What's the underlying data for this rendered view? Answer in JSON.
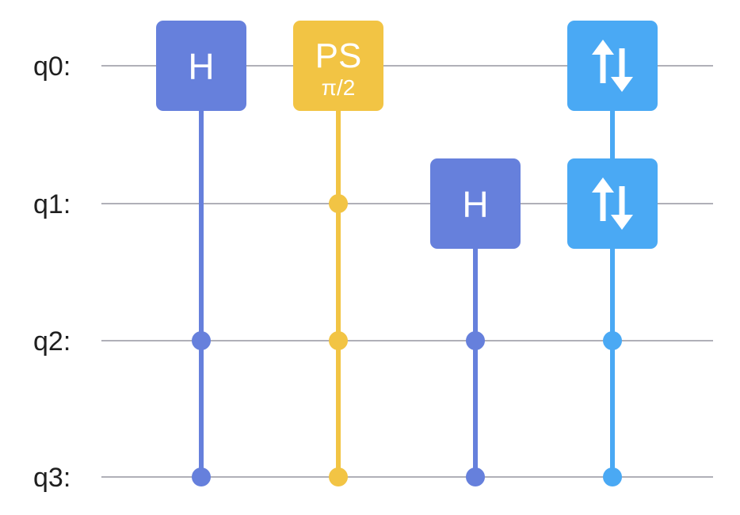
{
  "colors": {
    "wire": "#b0b0b8",
    "hadamard": "#6680dc",
    "phase": "#f2c444",
    "swap": "#4aa9f4"
  },
  "circuit": {
    "qubits": [
      "q0:",
      "q1:",
      "q2:",
      "q3:"
    ],
    "columns": [
      {
        "gates": [
          {
            "qubit": 0,
            "label": "H",
            "color": "hadamard"
          }
        ],
        "controls": [
          2,
          3
        ],
        "color": "hadamard"
      },
      {
        "gates": [
          {
            "qubit": 0,
            "label": "PS",
            "param": "π/2",
            "color": "phase"
          }
        ],
        "controls": [
          1,
          2,
          3
        ],
        "color": "phase"
      },
      {
        "gates": [
          {
            "qubit": 1,
            "label": "H",
            "color": "hadamard"
          }
        ],
        "controls": [
          2,
          3
        ],
        "color": "hadamard"
      },
      {
        "gates": [
          {
            "qubit": 0,
            "icon": "swap-arrows-icon",
            "color": "swap"
          },
          {
            "qubit": 1,
            "icon": "swap-arrows-icon",
            "color": "swap"
          }
        ],
        "controls": [
          2,
          3
        ],
        "color": "swap"
      }
    ]
  }
}
